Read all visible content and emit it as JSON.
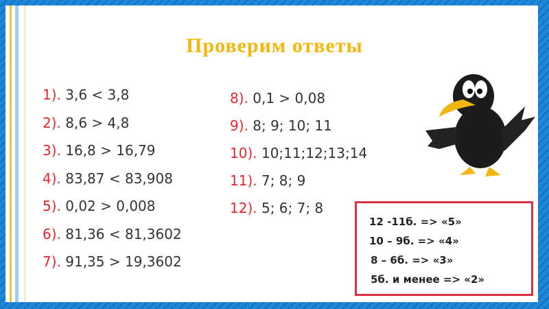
{
  "title": "Проверим ответы",
  "left_items": [
    {
      "num": "1).",
      "text": "3,6 < 3,8"
    },
    {
      "num": "2).",
      "text": "8,6 > 4,8"
    },
    {
      "num": "3).",
      "text": "16,8 > 16,79"
    },
    {
      "num": "4).",
      "text": "83,87 < 83,908"
    },
    {
      "num": "5).",
      "text": "0,02 > 0,008"
    },
    {
      "num": "6).",
      "text": "81,36 < 81,3602"
    },
    {
      "num": "7).",
      "text": "91,35 > 19,3602"
    }
  ],
  "right_items": [
    {
      "num": "8).",
      "text": "0,1 > 0,08"
    },
    {
      "num": "9).",
      "text": "8; 9; 10; 11"
    },
    {
      "num": "10).",
      "text": "10;11;12;13;14"
    },
    {
      "num": "11).",
      "text": "7; 8; 9"
    },
    {
      "num": "12).",
      "text": "5; 6; 7; 8"
    }
  ],
  "grading": [
    "12 -11б. => «5»",
    "10 – 9б. => «4»",
    " 8 – 6б. => «3»",
    " 5б. и менее => «2»"
  ],
  "colors": {
    "title": "#f6b60c",
    "number": "#e8242c",
    "box_border": "#e03040",
    "background": "#1a7fd0"
  },
  "illustration": "crow-icon"
}
